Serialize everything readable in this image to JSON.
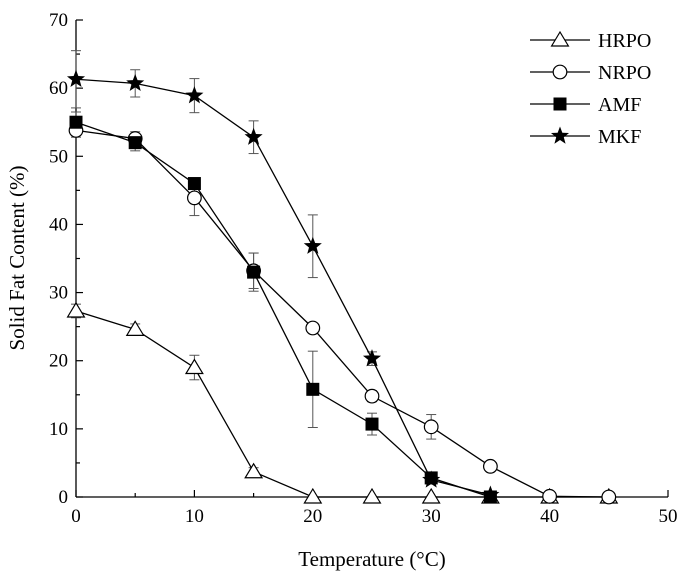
{
  "chart_data": {
    "type": "line",
    "title": "",
    "xlabel": "Temperature (°C)",
    "ylabel": "Solid Fat Content (%)",
    "xlim": [
      0,
      50
    ],
    "ylim": [
      0,
      70
    ],
    "xticks": [
      0,
      10,
      20,
      30,
      40,
      50
    ],
    "yticks": [
      0,
      10,
      20,
      30,
      40,
      50,
      60,
      70
    ],
    "grid": false,
    "legend_position": "top-right",
    "series": [
      {
        "name": "HRPO",
        "marker": "open-triangle",
        "x": [
          0,
          5,
          10,
          15,
          20,
          25,
          30,
          35,
          40,
          45
        ],
        "values": [
          27.3,
          24.6,
          19.0,
          3.7,
          0.0,
          0.0,
          0.0,
          0.0,
          0.0,
          0.0
        ],
        "errors": [
          1.0,
          0.8,
          1.8,
          0.6,
          0,
          0,
          0,
          0,
          0,
          0
        ]
      },
      {
        "name": "NRPO",
        "marker": "open-circle",
        "x": [
          0,
          5,
          10,
          15,
          20,
          25,
          30,
          35,
          40,
          45
        ],
        "values": [
          53.8,
          52.6,
          43.9,
          33.2,
          24.8,
          14.8,
          10.3,
          4.5,
          0.1,
          0.0
        ],
        "errors": [
          1.0,
          1.0,
          2.6,
          2.6,
          0.6,
          0.8,
          1.8,
          0.3,
          0.2,
          0
        ]
      },
      {
        "name": "AMF",
        "marker": "filled-square",
        "x": [
          0,
          5,
          10,
          15,
          20,
          25,
          30,
          35
        ],
        "values": [
          55.0,
          52.0,
          46.0,
          33.0,
          15.8,
          10.7,
          2.8,
          0.0
        ],
        "errors": [
          1.5,
          1.2,
          0.5,
          2.8,
          5.6,
          1.6,
          0.4,
          0
        ]
      },
      {
        "name": "MKF",
        "marker": "filled-star",
        "x": [
          0,
          5,
          10,
          15,
          20,
          25,
          30,
          35
        ],
        "values": [
          61.3,
          60.7,
          58.9,
          52.8,
          36.8,
          20.3,
          2.5,
          0.3
        ],
        "errors": [
          4.2,
          2.0,
          2.5,
          2.4,
          4.6,
          1.0,
          0.4,
          0.2
        ]
      }
    ]
  }
}
